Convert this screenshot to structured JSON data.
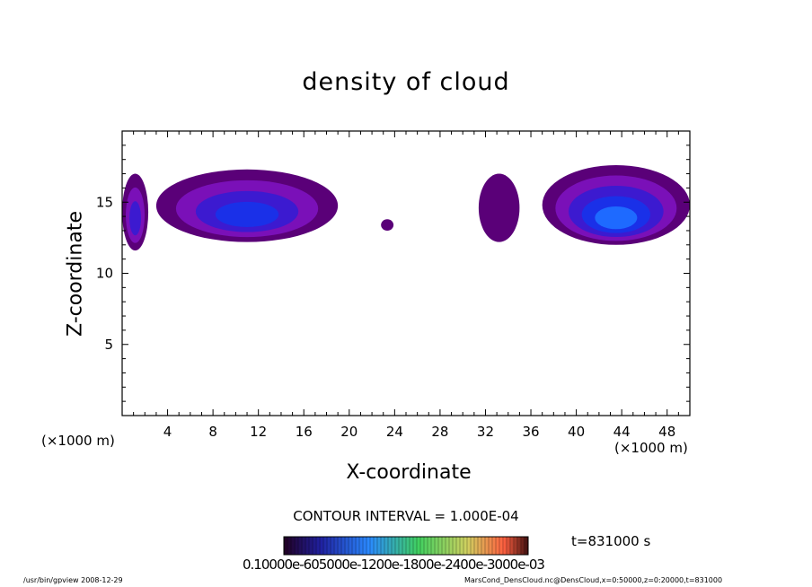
{
  "chart_data": {
    "type": "heatmap",
    "title": "density of cloud",
    "xlabel": "X-coordinate",
    "ylabel": "Z-coordinate",
    "x_unit_left": "(×1000 m)",
    "x_unit_right": "(×1000 m)",
    "xlim": [
      0,
      50
    ],
    "ylim": [
      0,
      20
    ],
    "xticks": [
      4,
      8,
      12,
      16,
      20,
      24,
      28,
      32,
      36,
      40,
      44,
      48
    ],
    "yticks": [
      5,
      10,
      15
    ],
    "colormap": [
      "#5a0078",
      "#7a10b8",
      "#3c1ad0",
      "#1a30e8",
      "#1e6aff"
    ],
    "regions": [
      {
        "x": [
          0,
          2.3
        ],
        "z": [
          11.6,
          17.0
        ],
        "peak": 0.00035
      },
      {
        "x": [
          3.0,
          19.0
        ],
        "z": [
          12.2,
          17.3
        ],
        "peak": 0.0006
      },
      {
        "x": [
          22.8,
          23.9
        ],
        "z": [
          13.0,
          13.8
        ],
        "peak": 0.0001
      },
      {
        "x": [
          31.4,
          35.0
        ],
        "z": [
          12.2,
          17.0
        ],
        "peak": 0.0001
      },
      {
        "x": [
          37.0,
          50.0
        ],
        "z": [
          12.0,
          17.6
        ],
        "peak": 0.0007
      }
    ],
    "contour_interval": "CONTOUR INTERVAL = 1.000E-04",
    "colorbar_labels": "0.10000e-605000e-1200e-1800e-2400e-3000e-03",
    "time_label": "t=831000 s"
  },
  "footer": {
    "left": "/usr/bin/gpview   2008-12-29",
    "right": "MarsCond_DensCloud.nc@DensCloud,x=0:50000,z=0:20000,t=831000"
  }
}
